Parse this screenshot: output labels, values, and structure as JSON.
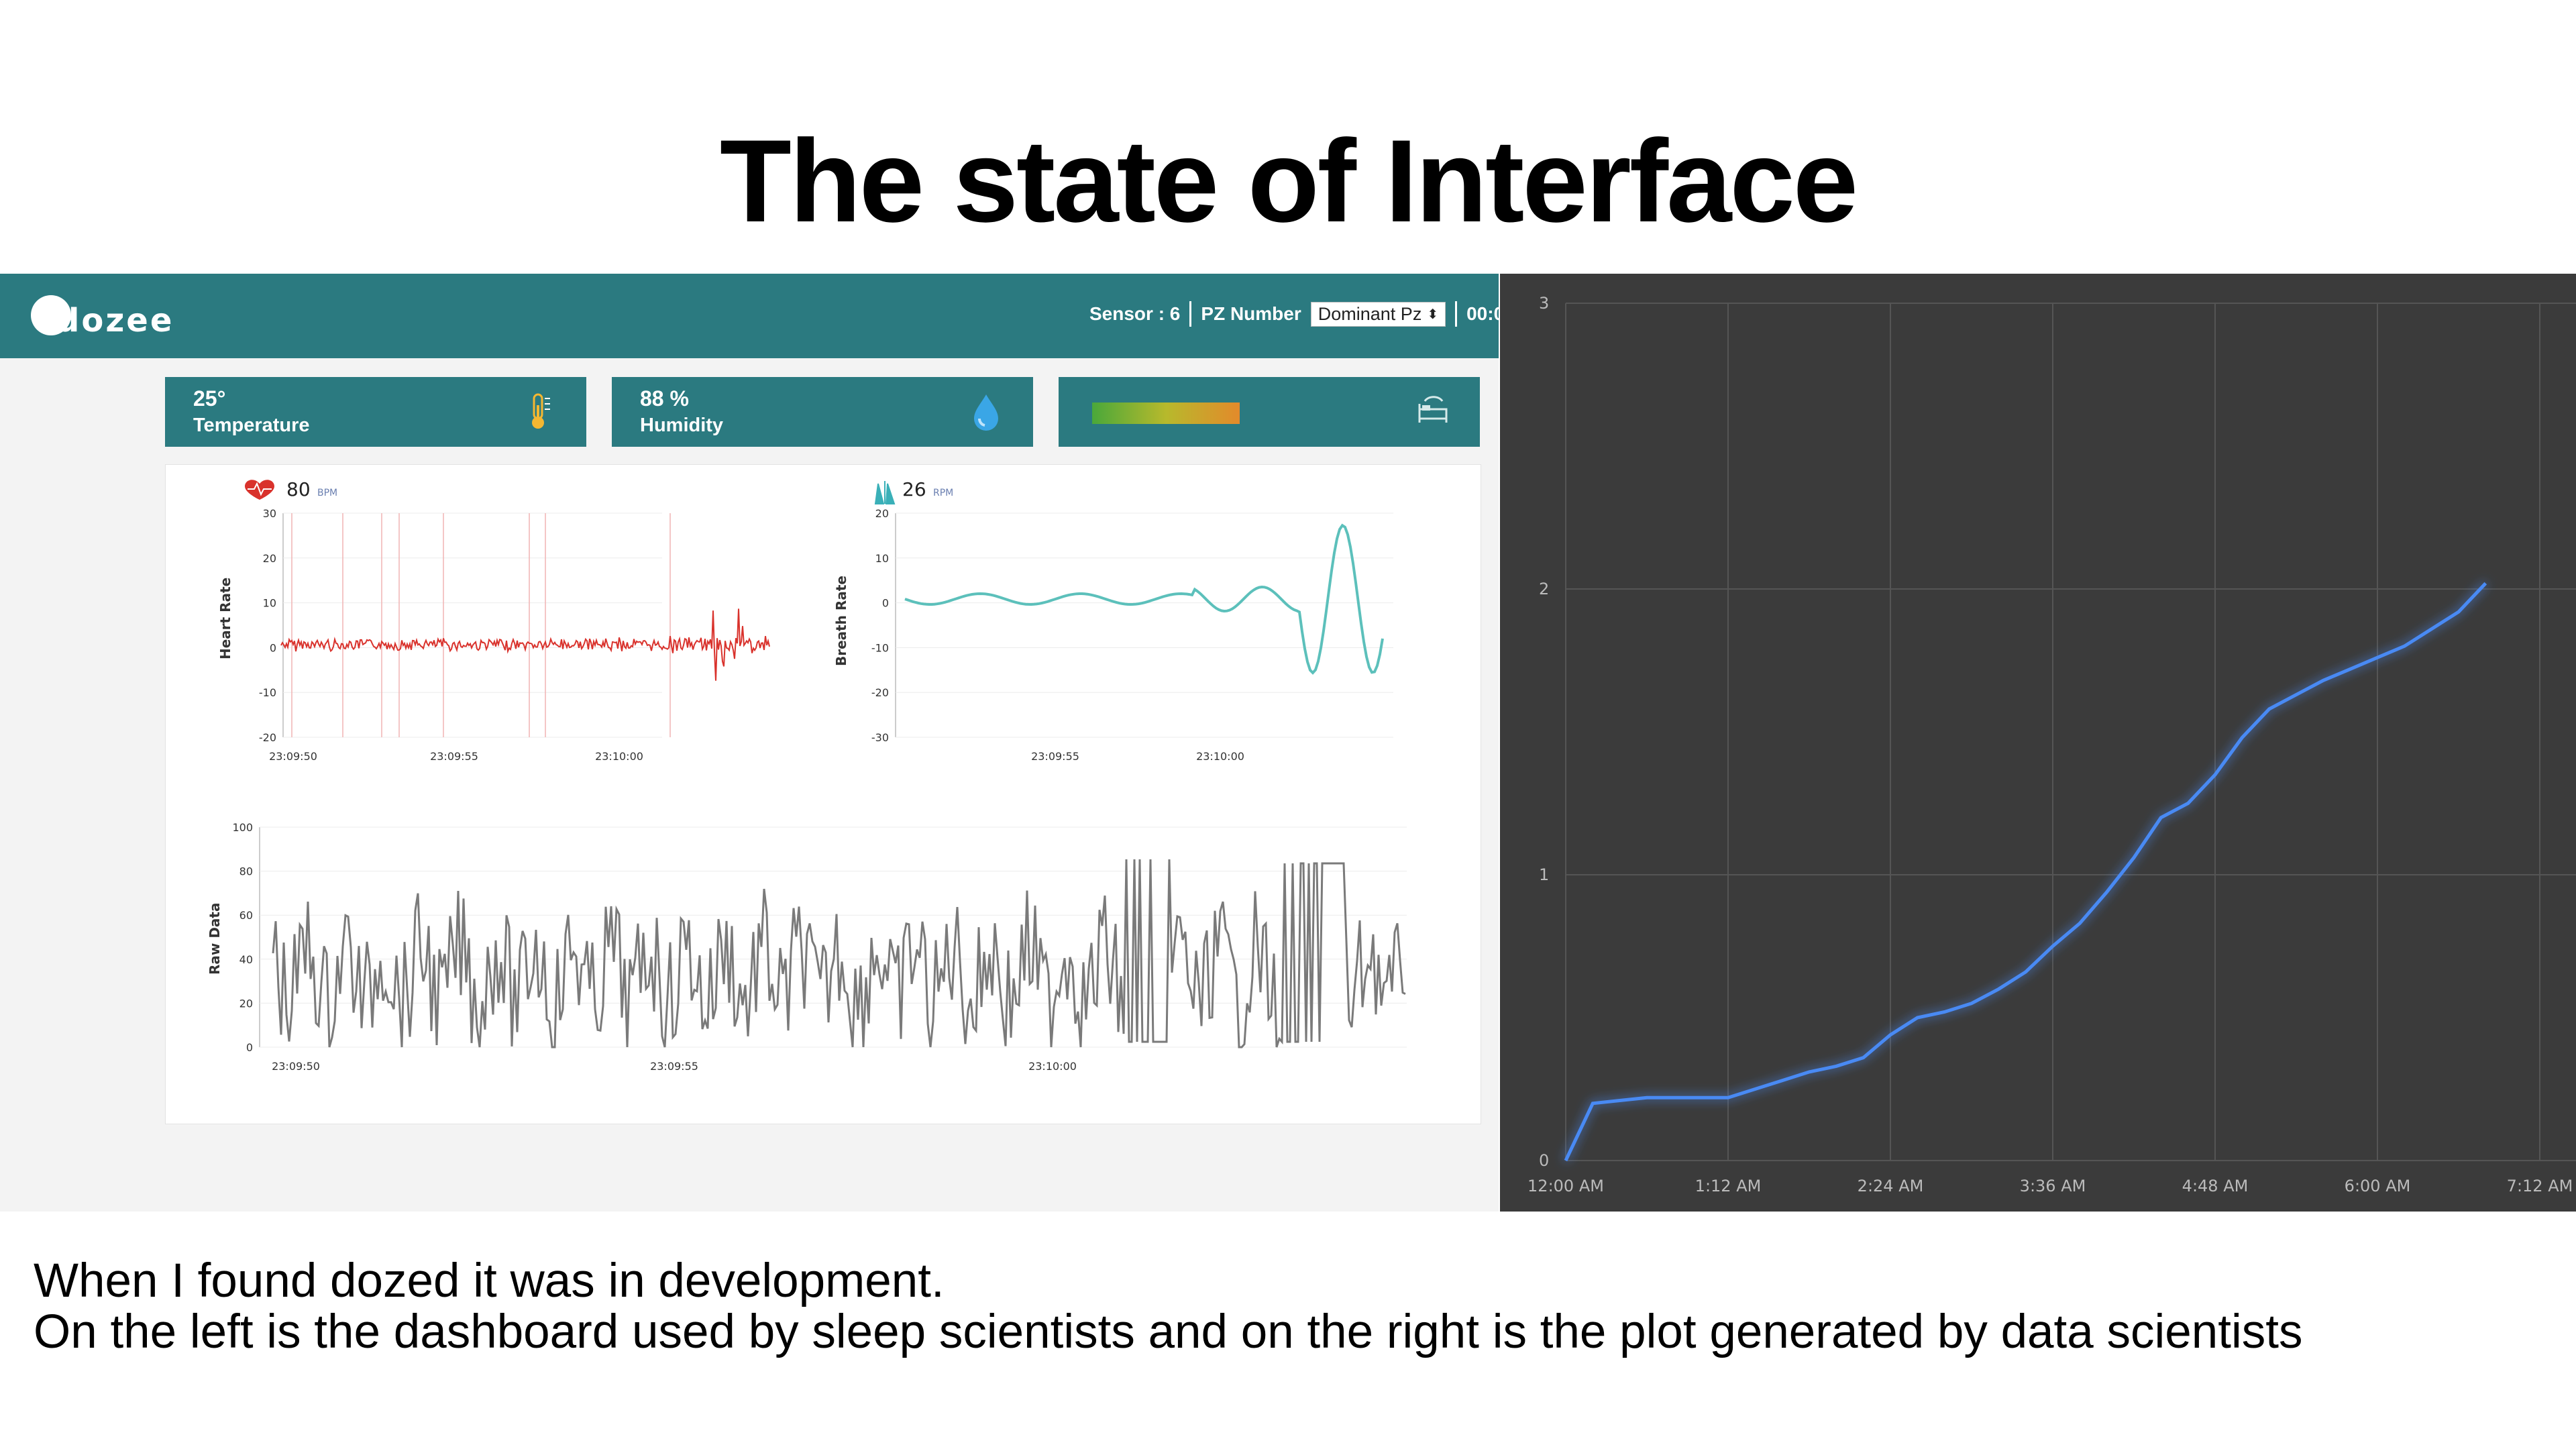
{
  "slide": {
    "title": "The state of Interface",
    "caption_lines": [
      "When I found dozed it was in development.",
      "On the left is the dashboard used by sleep scientists and on the right is the plot generated by data scientists"
    ]
  },
  "dashboard": {
    "logo_text": "dozee",
    "sensor_label": "Sensor : 6",
    "pz_label": "PZ Number",
    "pz_select_value": "Dominant Pz",
    "time_fragment": "00:0",
    "accent_color": "#2b7a80",
    "cards": [
      {
        "value": "25°",
        "label": "Temperature",
        "icon": "thermometer-icon"
      },
      {
        "value": "88 %",
        "label": "Humidity",
        "icon": "water-drop-icon"
      },
      {
        "value": "",
        "label": "",
        "icon": "bed-icon"
      }
    ],
    "heart": {
      "value": "80",
      "unit": "BPM",
      "ylabel": "Heart Rate",
      "yticks": [
        "30",
        "20",
        "10",
        "0",
        "-10",
        "-20"
      ],
      "xticks": [
        "23:09:50",
        "23:09:55",
        "23:10:00"
      ],
      "color": "#d9322c"
    },
    "breath": {
      "value": "26",
      "unit": "RPM",
      "ylabel": "Breath Rate",
      "yticks": [
        "20",
        "10",
        "0",
        "-10",
        "-20",
        "-30"
      ],
      "xticks": [
        "23:09:55",
        "23:10:00"
      ],
      "color": "#5cc0bb"
    },
    "raw": {
      "ylabel": "Raw Data",
      "yticks": [
        "100",
        "80",
        "60",
        "40",
        "20",
        "0"
      ],
      "xticks": [
        "23:09:50",
        "23:09:55",
        "23:10:00"
      ],
      "color": "#7a7a7a"
    }
  },
  "chart_data": [
    {
      "type": "line",
      "title": "",
      "xlabel": "",
      "ylabel": "",
      "x": [
        "12:00 AM",
        "12:12 AM",
        "12:24 AM",
        "12:36 AM",
        "12:48 AM",
        "1:00 AM",
        "1:12 AM",
        "1:24 AM",
        "1:36 AM",
        "1:48 AM",
        "2:00 AM",
        "2:12 AM",
        "2:24 AM",
        "2:36 AM",
        "2:48 AM",
        "3:00 AM",
        "3:12 AM",
        "3:24 AM",
        "3:36 AM",
        "3:48 AM",
        "4:00 AM",
        "4:12 AM",
        "4:24 AM",
        "4:36 AM",
        "4:48 AM",
        "5:00 AM",
        "5:12 AM",
        "5:24 AM",
        "5:36 AM",
        "5:48 AM",
        "6:00 AM",
        "6:12 AM",
        "6:24 AM",
        "6:36 AM",
        "6:48 AM"
      ],
      "series": [
        {
          "values": [
            0.0,
            0.2,
            0.21,
            0.22,
            0.22,
            0.22,
            0.22,
            0.25,
            0.28,
            0.31,
            0.33,
            0.36,
            0.44,
            0.5,
            0.52,
            0.55,
            0.6,
            0.66,
            0.75,
            0.83,
            0.94,
            1.06,
            1.2,
            1.25,
            1.35,
            1.48,
            1.58,
            1.63,
            1.68,
            1.72,
            1.76,
            1.8,
            1.86,
            1.92,
            2.02
          ]
        }
      ],
      "xticks": [
        "12:00 AM",
        "1:12 AM",
        "2:24 AM",
        "3:36 AM",
        "4:48 AM",
        "6:00 AM",
        "7:12 AM"
      ],
      "yticks": [
        "0",
        "1",
        "2",
        "3"
      ],
      "ylim": [
        0,
        3
      ],
      "grid": true,
      "background": "#3b3b3b",
      "line_color": "#4a8af4"
    }
  ]
}
